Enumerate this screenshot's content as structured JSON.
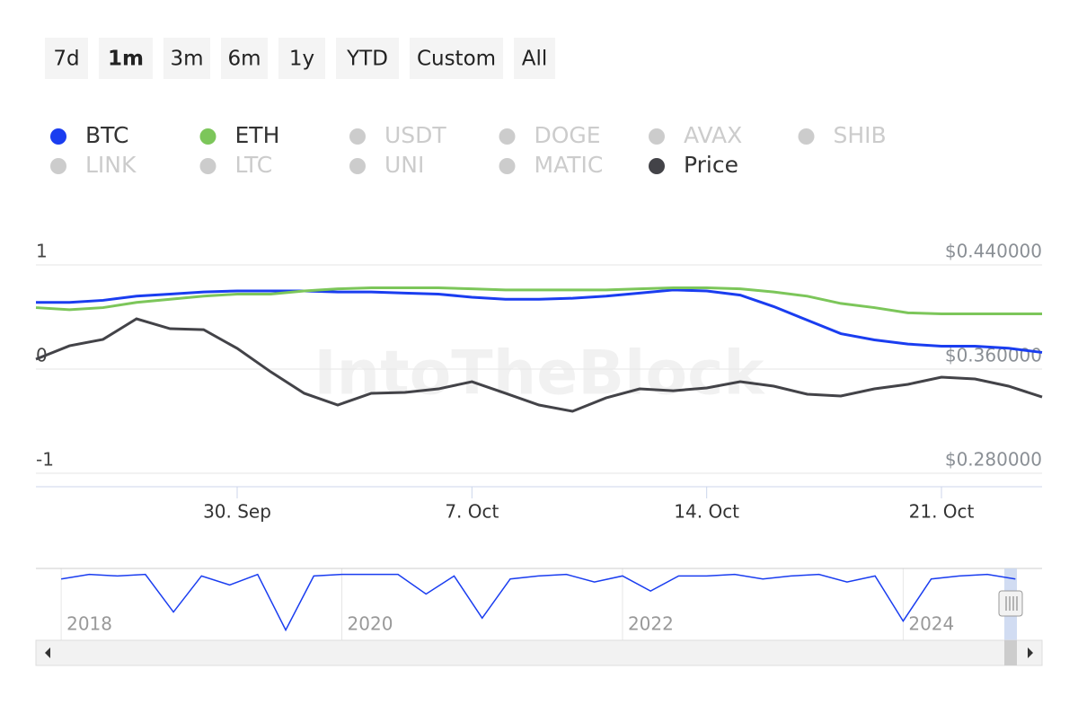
{
  "range_selector": {
    "buttons": [
      "7d",
      "1m",
      "3m",
      "6m",
      "1y",
      "YTD",
      "Custom",
      "All"
    ],
    "selected": 1
  },
  "chart_data": [
    {
      "type": "line",
      "watermark": "IntoTheBlock",
      "categories": [
        null,
        null,
        null,
        null,
        null,
        null,
        "30. Sep",
        null,
        null,
        null,
        null,
        null,
        null,
        "7. Oct",
        null,
        null,
        null,
        null,
        null,
        null,
        "14. Oct",
        null,
        null,
        null,
        null,
        null,
        null,
        "21. Oct",
        null,
        null,
        null
      ],
      "ylim": [
        -1,
        1
      ],
      "yticks": [
        1,
        0,
        -1
      ],
      "y2lim": [
        0.28,
        0.44
      ],
      "y2ticks": [
        {
          "value": 0.44,
          "label": "$0.440000"
        },
        {
          "value": 0.36,
          "label": "$0.360000"
        },
        {
          "value": 0.28,
          "label": "$0.280000"
        }
      ],
      "grid": true,
      "series": [
        {
          "name": "BTC",
          "color": "#1a3df0",
          "visible": true,
          "values": [
            0.64,
            0.64,
            0.66,
            0.7,
            0.72,
            0.74,
            0.75,
            0.75,
            0.75,
            0.74,
            0.74,
            0.73,
            0.72,
            0.69,
            0.67,
            0.67,
            0.68,
            0.7,
            0.73,
            0.76,
            0.75,
            0.71,
            0.6,
            0.47,
            0.34,
            0.28,
            0.24,
            0.22,
            0.22,
            0.2,
            0.16
          ]
        },
        {
          "name": "ETH",
          "color": "#7cc65a",
          "visible": true,
          "values": [
            0.59,
            0.57,
            0.59,
            0.64,
            0.67,
            0.7,
            0.72,
            0.72,
            0.75,
            0.77,
            0.78,
            0.78,
            0.78,
            0.77,
            0.76,
            0.76,
            0.76,
            0.76,
            0.77,
            0.78,
            0.78,
            0.77,
            0.74,
            0.7,
            0.63,
            0.59,
            0.54,
            0.53,
            0.53,
            0.53,
            0.53
          ]
        },
        {
          "name": "USDT",
          "color": "#cccccc",
          "visible": false
        },
        {
          "name": "DOGE",
          "color": "#cccccc",
          "visible": false
        },
        {
          "name": "AVAX",
          "color": "#cccccc",
          "visible": false
        },
        {
          "name": "SHIB",
          "color": "#cccccc",
          "visible": false
        },
        {
          "name": "LINK",
          "color": "#cccccc",
          "visible": false
        },
        {
          "name": "LTC",
          "color": "#cccccc",
          "visible": false
        },
        {
          "name": "UNI",
          "color": "#cccccc",
          "visible": false
        },
        {
          "name": "MATIC",
          "color": "#cccccc",
          "visible": false
        },
        {
          "name": "Price",
          "color": "#434348",
          "visible": true,
          "axis": "y2",
          "values": [
            0.3676,
            0.3779,
            0.3828,
            0.3986,
            0.391,
            0.3903,
            0.3759,
            0.3579,
            0.3414,
            0.3324,
            0.3414,
            0.3421,
            0.3448,
            0.3503,
            0.3414,
            0.3324,
            0.3276,
            0.3379,
            0.3448,
            0.3434,
            0.3455,
            0.3503,
            0.3469,
            0.3407,
            0.3393,
            0.3448,
            0.3483,
            0.3538,
            0.3524,
            0.3469,
            0.3386
          ]
        }
      ]
    },
    {
      "type": "navigator",
      "xlim": [
        2017.82,
        2024.99
      ],
      "xticks": [
        2018,
        2020,
        2022,
        2024
      ],
      "ylim": [
        -1,
        1
      ],
      "x": [
        2018.0,
        2018.2,
        2018.4,
        2018.6,
        2018.8,
        2019.0,
        2019.2,
        2019.4,
        2019.6,
        2019.8,
        2020.0,
        2020.2,
        2020.4,
        2020.6,
        2020.8,
        2021.0,
        2021.2,
        2021.4,
        2021.6,
        2021.8,
        2022.0,
        2022.2,
        2022.4,
        2022.6,
        2022.8,
        2023.0,
        2023.2,
        2023.4,
        2023.6,
        2023.8,
        2024.0,
        2024.2,
        2024.4,
        2024.6,
        2024.8
      ],
      "series": [
        {
          "name": "BTC",
          "color": "#1a3df0",
          "values": [
            0.8,
            0.95,
            0.9,
            0.95,
            -0.3,
            0.9,
            0.6,
            0.95,
            -0.9,
            0.9,
            0.95,
            0.95,
            0.95,
            0.3,
            0.9,
            -0.5,
            0.8,
            0.9,
            0.95,
            0.7,
            0.9,
            0.4,
            0.9,
            0.9,
            0.95,
            0.8,
            0.9,
            0.95,
            0.7,
            0.9,
            -0.6,
            0.8,
            0.9,
            0.95,
            0.8
          ]
        }
      ]
    }
  ]
}
